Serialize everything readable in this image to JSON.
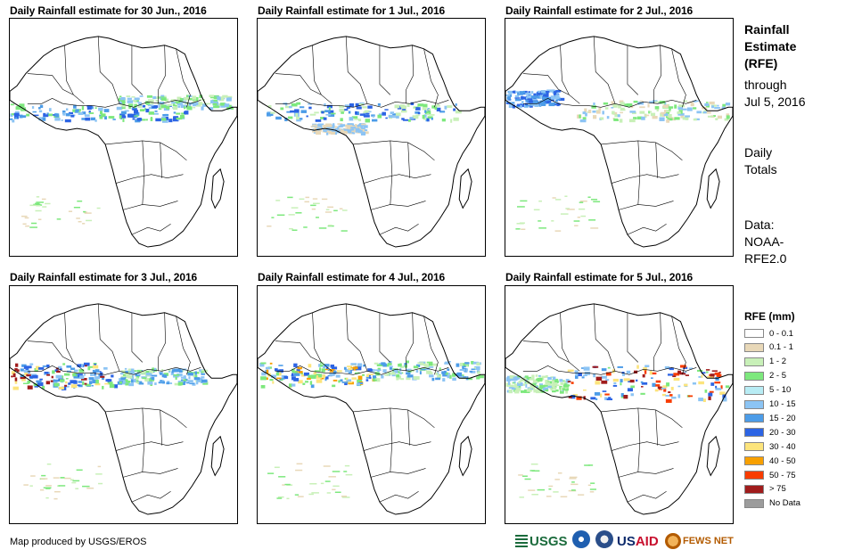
{
  "panels": [
    {
      "title": "Daily Rainfall estimate for 30 Jun., 2016"
    },
    {
      "title": "Daily Rainfall estimate for 1 Jul., 2016"
    },
    {
      "title": "Daily Rainfall estimate for 2 Jul., 2016"
    },
    {
      "title": "Daily Rainfall estimate for 3 Jul., 2016"
    },
    {
      "title": "Daily Rainfall estimate for 4 Jul., 2016"
    },
    {
      "title": "Daily Rainfall estimate for 5 Jul., 2016"
    }
  ],
  "side": {
    "title_lines": [
      "Rainfall",
      "Estimate",
      "(RFE)"
    ],
    "through_lines": [
      "through",
      "Jul 5, 2016"
    ],
    "totals_lines": [
      "Daily",
      "Totals"
    ],
    "data_lines": [
      "Data:",
      "NOAA-",
      "RFE2.0"
    ]
  },
  "legend": {
    "title": "RFE (mm)",
    "items": [
      {
        "label": "0 - 0.1",
        "color": "#ffffff"
      },
      {
        "label": "0.1 - 1",
        "color": "#e8d8b8"
      },
      {
        "label": "1 - 2",
        "color": "#c8f0b8"
      },
      {
        "label": "2 - 5",
        "color": "#7de87d"
      },
      {
        "label": "5 - 10",
        "color": "#b8ecf4"
      },
      {
        "label": "10 - 15",
        "color": "#8cc4f4"
      },
      {
        "label": "15 - 20",
        "color": "#4c9ce8"
      },
      {
        "label": "20 - 30",
        "color": "#2c64e4"
      },
      {
        "label": "30 - 40",
        "color": "#fce47c"
      },
      {
        "label": "40 - 50",
        "color": "#f8a000"
      },
      {
        "label": "50 - 75",
        "color": "#f83c00"
      },
      {
        "label": "> 75",
        "color": "#a01c1c"
      },
      {
        "label": "No Data",
        "color": "#9c9c9c"
      }
    ]
  },
  "credit": "Map produced by USGS/EROS",
  "logos": {
    "usgs": "USGS",
    "usaid_a": "US",
    "usaid_b": "AID",
    "fews": "FEWS NET"
  }
}
